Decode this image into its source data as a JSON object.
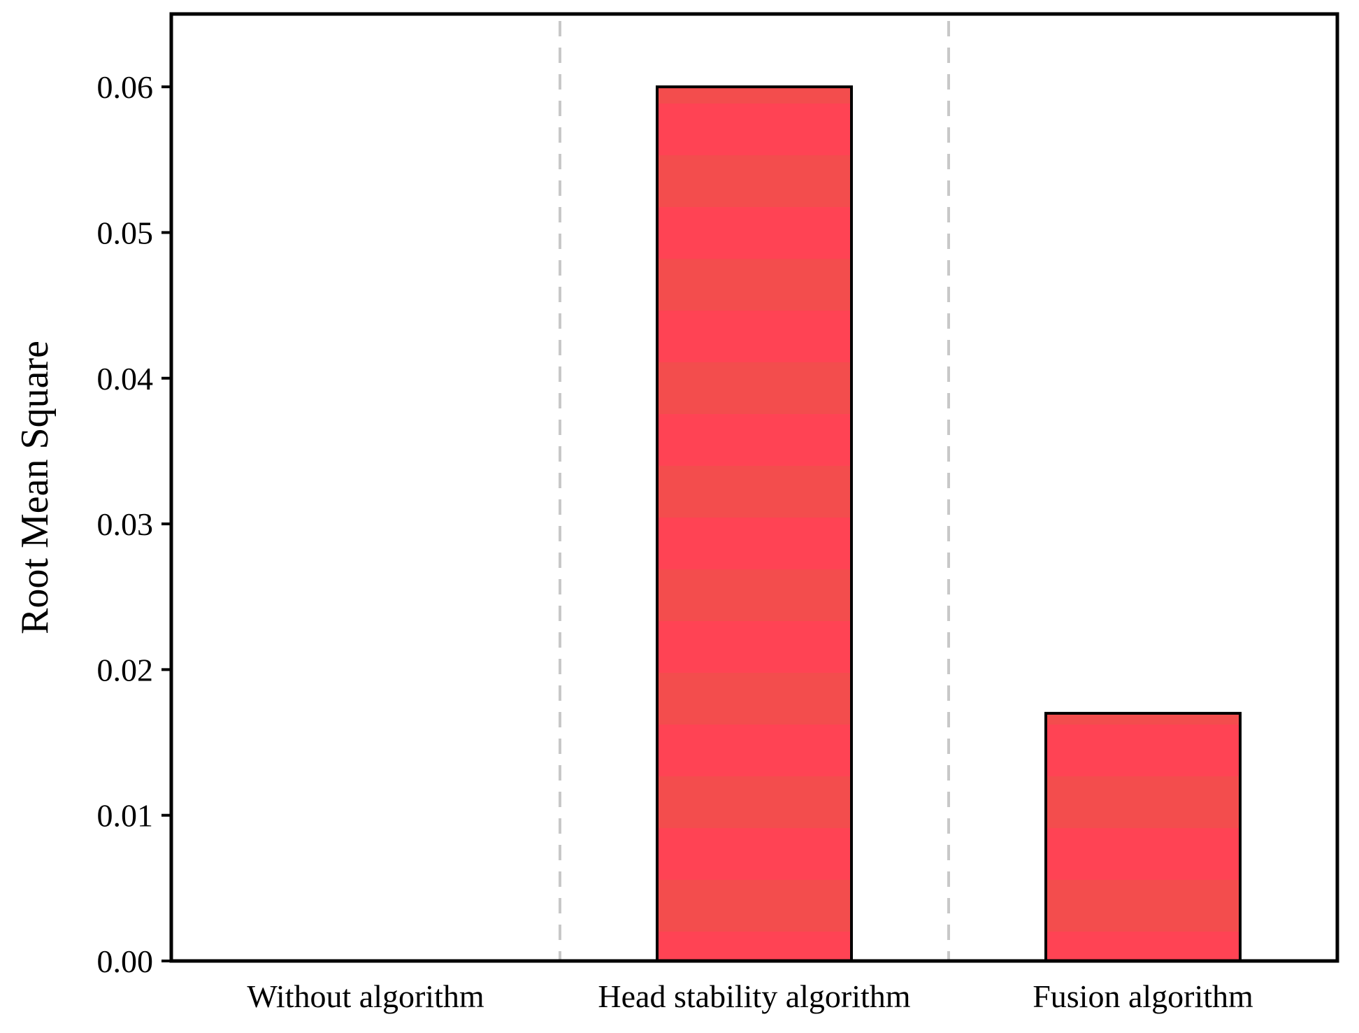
{
  "chart_data": {
    "type": "bar",
    "title": "",
    "xlabel": "",
    "ylabel": "Root Mean Square",
    "categories": [
      "Without algorithm",
      "Head stability algorithm",
      "Fusion algorithm"
    ],
    "values": [
      0,
      0.06,
      0.017
    ],
    "ylim": [
      0,
      0.065
    ],
    "yticks": [
      0.0,
      0.01,
      0.02,
      0.03,
      0.04,
      0.05,
      0.06
    ],
    "ytick_labels": [
      "0.00",
      "0.01",
      "0.02",
      "0.03",
      "0.04",
      "0.05",
      "0.06"
    ],
    "grid": false,
    "category_separators": "dashed",
    "colors": {
      "bar_fill_a": "#ff4354",
      "bar_fill_b": "#f34d4d",
      "bar_stroke": "#000000",
      "separator": "#c8c8c8"
    }
  }
}
